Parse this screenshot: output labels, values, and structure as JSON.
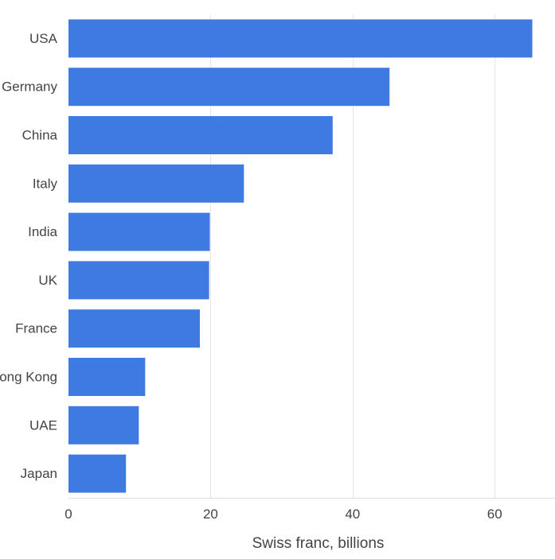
{
  "chart_data": {
    "type": "bar",
    "orientation": "horizontal",
    "categories": [
      "USA",
      "Germany",
      "China",
      "Italy",
      "India",
      "UK",
      "France",
      "Hong Kong",
      "UAE",
      "Japan"
    ],
    "values": [
      65.3,
      45.2,
      37.2,
      24.7,
      19.9,
      19.8,
      18.5,
      10.8,
      9.9,
      8.1
    ],
    "xlabel": "Swiss franc, billions",
    "ylabel": "",
    "xlim": [
      0,
      68.5
    ],
    "xticks": [
      0,
      20,
      40,
      60
    ],
    "xtick_labels": [
      "0",
      "20",
      "40",
      "60"
    ],
    "grid": true,
    "colors": {
      "bar": "#3f7ae3"
    }
  }
}
